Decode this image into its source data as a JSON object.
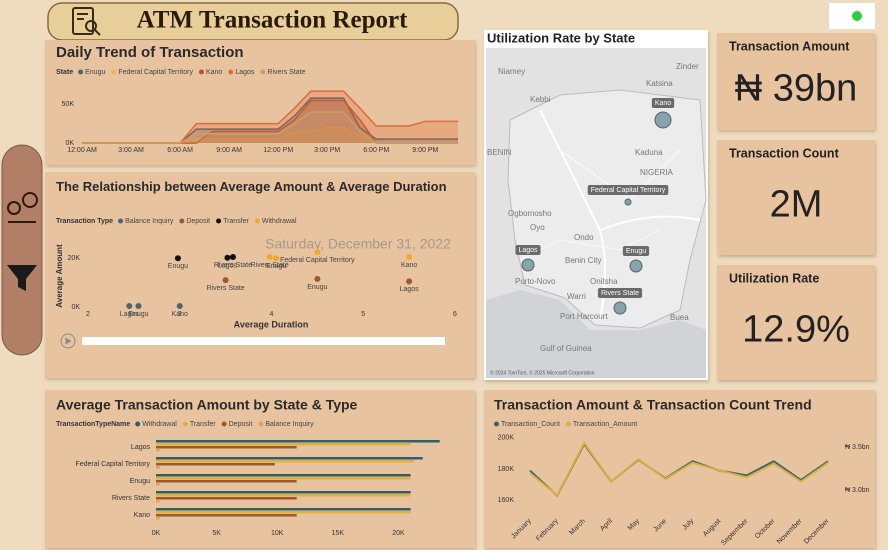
{
  "header": {
    "title": "ATM Transaction Report"
  },
  "cards": [
    {
      "title": "Transaction Amount",
      "value": "₦ 39bn"
    },
    {
      "title": "Transaction Count",
      "value": "2M"
    },
    {
      "title": "Utilization Rate",
      "value": "12.9%"
    }
  ],
  "map": {
    "title": "Utilization Rate by State",
    "places": [
      "Niamey",
      "Zinder",
      "Kebbi",
      "Katsina",
      "Kaduna",
      "NIGERIA",
      "BENIN",
      "Ogbomosho",
      "Oyo",
      "Ondo",
      "Porto-Novo",
      "Benin City",
      "Onitsha",
      "Warri",
      "Port Harcourt",
      "Buea",
      "Gulf of Guinea"
    ],
    "bubbles": [
      "Kano",
      "Federal Capital Territory",
      "Lagos",
      "Enugu",
      "Rivers State"
    ],
    "attribution": "© 2024 TomTom, © 2025 Microsoft Corporation"
  },
  "chart_data": [
    {
      "type": "area",
      "title": "Daily Trend of Transaction",
      "legend_title": "State",
      "categories": [
        "12:00 AM",
        null,
        null,
        "3:00 AM",
        null,
        null,
        "6:00 AM",
        null,
        null,
        "9:00 AM",
        null,
        null,
        "12:00 PM",
        null,
        null,
        "3:00 PM",
        null,
        null,
        "6:00 PM",
        null,
        null,
        "9:00 PM",
        null,
        null
      ],
      "series": [
        {
          "name": "Enugu",
          "color": "#4a6670",
          "values": [
            0,
            0,
            0,
            0,
            0,
            0,
            0,
            18000,
            18000,
            18000,
            18000,
            18000,
            18000,
            35000,
            58000,
            58000,
            58000,
            20000,
            5000,
            5000,
            5000,
            5000,
            5000,
            5000
          ]
        },
        {
          "name": "Federal Capital Territory",
          "color": "#e8b84a",
          "values": [
            0,
            0,
            0,
            0,
            0,
            0,
            0,
            5000,
            5000,
            5000,
            5000,
            5000,
            5000,
            15000,
            15000,
            20000,
            20000,
            10000,
            0,
            0,
            0,
            0,
            0,
            0
          ]
        },
        {
          "name": "Kano",
          "color": "#c0502a",
          "values": [
            0,
            0,
            0,
            0,
            0,
            0,
            0,
            0,
            15000,
            15000,
            15000,
            15000,
            15000,
            30000,
            55000,
            55000,
            55000,
            30000,
            0,
            0,
            0,
            0,
            0,
            0
          ]
        },
        {
          "name": "Lagos",
          "color": "#e06d3a",
          "values": [
            0,
            0,
            0,
            0,
            0,
            0,
            0,
            25000,
            25000,
            25000,
            25000,
            25000,
            25000,
            45000,
            67000,
            67000,
            67000,
            45000,
            22000,
            22000,
            22000,
            28000,
            28000,
            28000
          ]
        },
        {
          "name": "Rivers State",
          "color": "#c8a070",
          "values": [
            0,
            0,
            0,
            0,
            0,
            0,
            0,
            12000,
            12000,
            12000,
            12000,
            12000,
            12000,
            25000,
            40000,
            40000,
            40000,
            15000,
            0,
            0,
            0,
            0,
            0,
            0
          ]
        }
      ],
      "ylim": [
        0,
        75000
      ],
      "yticks": [
        {
          "value": 0,
          "label": "0K"
        },
        {
          "value": 50000,
          "label": "50K"
        }
      ]
    },
    {
      "type": "scatter",
      "title": "The Relationship between Average Amount & Average Duration",
      "legend_title": "Transaction Type",
      "xlabel": "Average Duration",
      "ylabel": "Average Amount",
      "annotation": "Saturday, December 31, 2022",
      "series": [
        {
          "name": "Balance Inquiry",
          "color": "#4a6670",
          "x": [
            2.45,
            2.55,
            3.0
          ],
          "y": [
            400,
            400,
            400
          ],
          "labels": [
            "Lagos",
            "Enugu",
            "Kano"
          ]
        },
        {
          "name": "Deposit",
          "color": "#9c5a2a",
          "x": [
            3.5,
            4.5,
            5.5
          ],
          "y": [
            11000,
            11500,
            10500
          ],
          "labels": [
            "Rivers State",
            "Enugu",
            "Lagos"
          ]
        },
        {
          "name": "Transfer",
          "color": "#111111",
          "x": [
            2.98,
            3.52,
            3.58
          ],
          "y": [
            20000,
            20200,
            20500
          ],
          "labels": [
            "Enugu",
            "Lagos",
            "Rivers State"
          ]
        },
        {
          "name": "Withdrawal",
          "color": "#f0a830",
          "x": [
            3.98,
            4.5,
            5.5,
            4.05
          ],
          "y": [
            20500,
            22500,
            20500,
            20000
          ],
          "labels": [
            "Rivers State",
            "Federal Capital Territory",
            "Kano",
            "Enugu"
          ]
        }
      ],
      "xlim": [
        2,
        6
      ],
      "xticks": [
        2,
        3,
        4,
        5,
        6
      ],
      "ylim": [
        0,
        25000
      ],
      "yticks": [
        {
          "value": 0,
          "label": "0K"
        },
        {
          "value": 20000,
          "label": "20K"
        }
      ]
    },
    {
      "type": "barh",
      "title": "Average Transaction Amount by State & Type",
      "legend_title": "TransactionTypeName",
      "categories": [
        "Lagos",
        "Federal Capital Territory",
        "Enugu",
        "Rivers State",
        "Kano"
      ],
      "series": [
        {
          "name": "Withdrawal",
          "color": "#2f5f6b",
          "values": [
            23400,
            22000,
            21000,
            21000,
            21000
          ]
        },
        {
          "name": "Transfer",
          "color": "#e0b040",
          "values": [
            21000,
            21300,
            21000,
            21000,
            21000
          ]
        },
        {
          "name": "Deposit",
          "color": "#9c5a2a",
          "values": [
            11600,
            9800,
            11600,
            11600,
            11600
          ]
        },
        {
          "name": "Balance Inquiry",
          "color": "#e4a060",
          "values": [
            300,
            300,
            300,
            300,
            300
          ]
        }
      ],
      "xlim": [
        0,
        24000
      ],
      "xticks": [
        {
          "value": 0,
          "label": "0K"
        },
        {
          "value": 5000,
          "label": "5K"
        },
        {
          "value": 10000,
          "label": "10K"
        },
        {
          "value": 15000,
          "label": "15K"
        },
        {
          "value": 20000,
          "label": "20K"
        }
      ]
    },
    {
      "type": "line",
      "title": "Transaction Amount & Transaction Count Trend",
      "categories": [
        "January",
        "February",
        "March",
        "April",
        "May",
        "June",
        "July",
        "August",
        "September",
        "October",
        "November",
        "December"
      ],
      "series": [
        {
          "name": "Transaction_Count",
          "color": "#3d6570",
          "values": [
            179000,
            163000,
            196000,
            172000,
            186000,
            174000,
            185000,
            179000,
            176000,
            185000,
            173000,
            185000
          ]
        },
        {
          "name": "Transaction_Amount",
          "color": "#d8b040",
          "axis": "y2",
          "values": [
            3200000000,
            2940000000,
            3550000000,
            3100000000,
            3360000000,
            3130000000,
            3320000000,
            3230000000,
            3150000000,
            3310000000,
            3100000000,
            3320000000
          ]
        }
      ],
      "ylim": [
        150000,
        205000
      ],
      "yticks": [
        {
          "value": 160000,
          "label": "160K"
        },
        {
          "value": 180000,
          "label": "180K"
        },
        {
          "value": 200000,
          "label": "200K"
        }
      ],
      "y2lim": [
        2700000000,
        3700000000
      ],
      "y2ticks": [
        {
          "value": 3000000000,
          "label": "₦ 3.0bn"
        },
        {
          "value": 3500000000,
          "label": "₦ 3.5bn"
        }
      ]
    }
  ]
}
